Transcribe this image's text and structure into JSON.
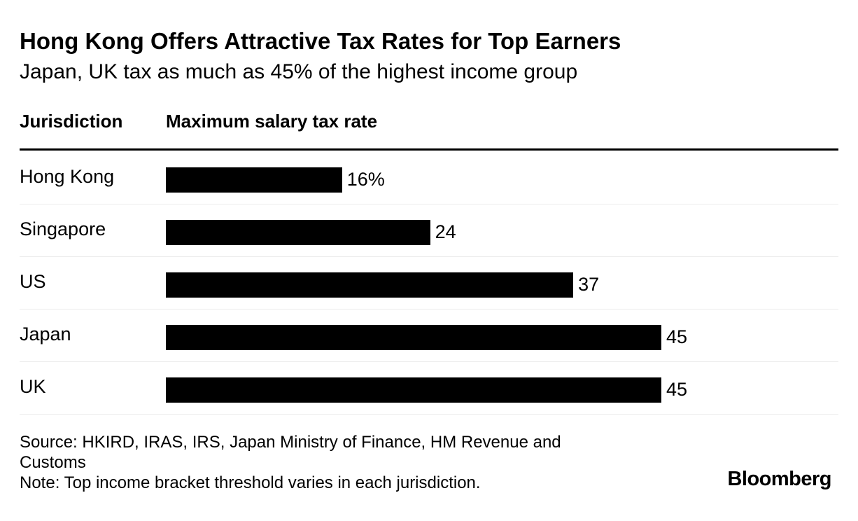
{
  "title": "Hong Kong Offers Attractive Tax Rates for Top Earners",
  "subtitle": "Japan, UK tax as much as 45% of the highest income group",
  "columns": {
    "jurisdiction": "Jurisdiction",
    "rate": "Maximum salary tax rate"
  },
  "chart_data": {
    "type": "bar",
    "orientation": "horizontal",
    "categories": [
      "Hong Kong",
      "Singapore",
      "US",
      "Japan",
      "UK"
    ],
    "values": [
      16,
      24,
      37,
      45,
      45
    ],
    "data_labels": [
      "16%",
      "24",
      "37",
      "45",
      "45"
    ],
    "title": "Hong Kong Offers Attractive Tax Rates for Top Earners",
    "subtitle": "Japan, UK tax as much as 45% of the highest income group",
    "xlabel": "Maximum salary tax rate",
    "ylabel": "Jurisdiction",
    "xlim": [
      0,
      45
    ],
    "bar_color": "#000000",
    "grid": false,
    "legend": "none"
  },
  "footer": {
    "source": "Source: HKIRD, IRAS, IRS, Japan Ministry of Finance, HM Revenue and Customs",
    "note": "Note: Top income bracket threshold varies in each jurisdiction."
  },
  "brand": "Bloomberg"
}
